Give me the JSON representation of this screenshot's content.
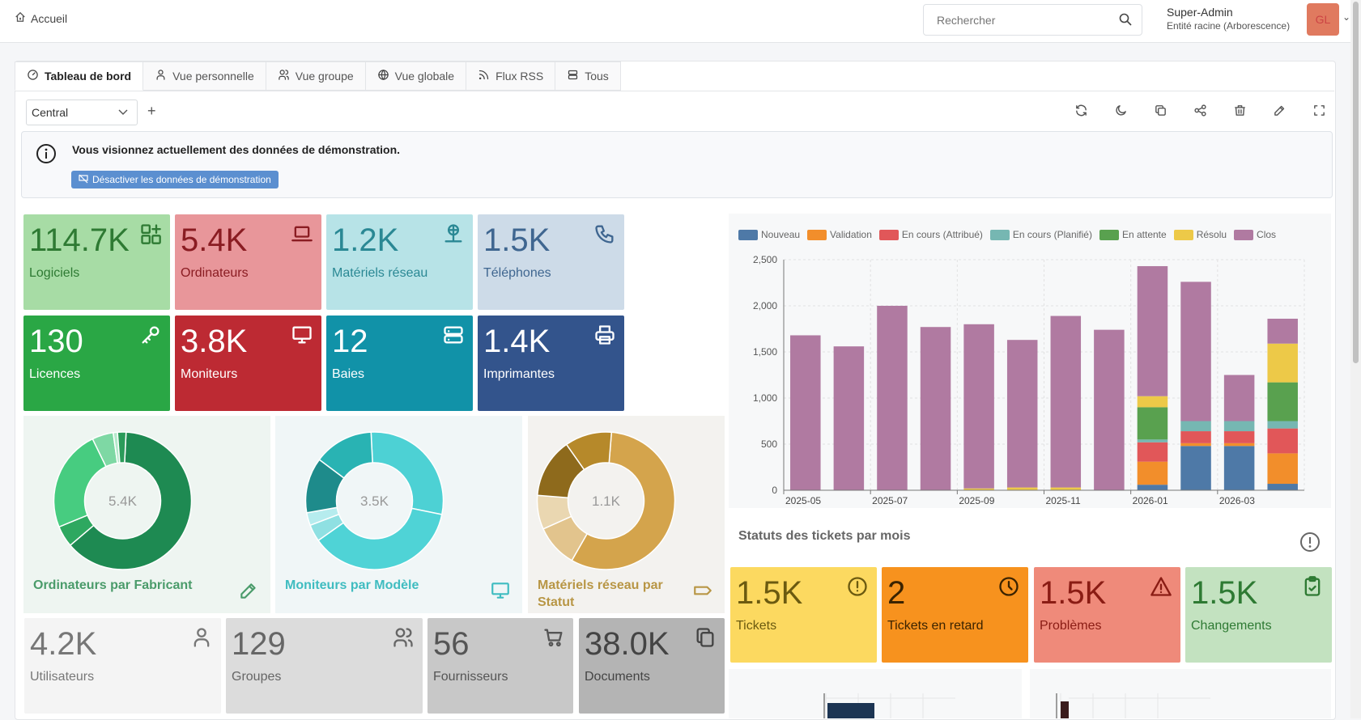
{
  "header": {
    "home_label": "Accueil",
    "search_placeholder": "Rechercher",
    "user_name": "Super-Admin",
    "user_entity": "Entité racine (Arborescence)",
    "avatar_initials": "GL"
  },
  "tabs": [
    {
      "label": "Tableau de bord",
      "icon": "gauge-icon"
    },
    {
      "label": "Vue personnelle",
      "icon": "user-icon"
    },
    {
      "label": "Vue groupe",
      "icon": "users-icon"
    },
    {
      "label": "Vue globale",
      "icon": "globe-icon"
    },
    {
      "label": "Flux RSS",
      "icon": "rss-icon"
    },
    {
      "label": "Tous",
      "icon": "stack-icon"
    }
  ],
  "dashboard_select": {
    "value": "Central"
  },
  "toolbar": [
    "refresh-icon",
    "moon-icon",
    "copy-icon",
    "share-icon",
    "trash-icon",
    "edit-icon",
    "fullscreen-icon"
  ],
  "alert": {
    "message": "Vous visionnez actuellement des données de démonstration.",
    "button": "Désactiver les données de démonstration"
  },
  "cards_top": [
    {
      "value": "114.7K",
      "label": "Logiciels",
      "icon": "apps-icon",
      "bg": "#a7dca5",
      "fg": "#2e7a33"
    },
    {
      "value": "5.4K",
      "label": "Ordinateurs",
      "icon": "laptop-icon",
      "bg": "#e8969a",
      "fg": "#8a1c22"
    },
    {
      "value": "1.2K",
      "label": "Matériels réseau",
      "icon": "network-icon",
      "bg": "#b7e3e7",
      "fg": "#2a8894"
    },
    {
      "value": "1.5K",
      "label": "Téléphones",
      "icon": "phone-icon",
      "bg": "#cddbe8",
      "fg": "#3f6690"
    },
    {
      "value": "130",
      "label": "Licences",
      "icon": "key-icon",
      "bg": "#2aa745",
      "fg": "#ffffff"
    },
    {
      "value": "3.8K",
      "label": "Moniteurs",
      "icon": "monitor-icon",
      "bg": "#bd2a33",
      "fg": "#ffffff"
    },
    {
      "value": "12",
      "label": "Baies",
      "icon": "server-icon",
      "bg": "#1192a8",
      "fg": "#ffffff"
    },
    {
      "value": "1.4K",
      "label": "Imprimantes",
      "icon": "printer-icon",
      "bg": "#33548c",
      "fg": "#ffffff"
    }
  ],
  "donuts": [
    {
      "title": "Ordinateurs par Fabricant",
      "center": "5.4K",
      "icon": "edit-icon",
      "bg": "#eef5f1",
      "title_color": "#4a9b6a",
      "slices": [
        {
          "value": 63,
          "color": "#1e8a52"
        },
        {
          "value": 5,
          "color": "#2ea860"
        },
        {
          "value": 24,
          "color": "#47cc80"
        },
        {
          "value": 5,
          "color": "#7ed8a4"
        },
        {
          "value": 1,
          "color": "#b4e9cb"
        },
        {
          "value": 2,
          "color": "#2b9b5a"
        }
      ]
    },
    {
      "title": "Moniteurs par Modèle",
      "center": "3.5K",
      "icon": "monitor-icon",
      "bg": "#f0f6f7",
      "title_color": "#3fbcc0",
      "slices": [
        {
          "value": 29,
          "color": "#4dd1d4"
        },
        {
          "value": 37,
          "color": "#4fd3d6"
        },
        {
          "value": 4,
          "color": "#8fe0e2"
        },
        {
          "value": 3,
          "color": "#b6ecee"
        },
        {
          "value": 13,
          "color": "#1e8b8b"
        },
        {
          "value": 14,
          "color": "#29b3b3"
        }
      ]
    },
    {
      "title": "Matériels réseau par Statut",
      "center": "1.1K",
      "icon": "tag-icon",
      "bg": "#f3f2ef",
      "title_color": "#b89645",
      "slices": [
        {
          "value": 57,
          "color": "#d4a44c"
        },
        {
          "value": 10,
          "color": "#e2c48d"
        },
        {
          "value": 8,
          "color": "#ead7b1"
        },
        {
          "value": 14,
          "color": "#8e6a1c"
        },
        {
          "value": 11,
          "color": "#b6892a"
        }
      ]
    }
  ],
  "cards_bottom": [
    {
      "value": "4.2K",
      "label": "Utilisateurs",
      "icon": "user-icon",
      "bg": "#f4f4f4",
      "fg": "#777777"
    },
    {
      "value": "129",
      "label": "Groupes",
      "icon": "users-icon",
      "bg": "#dcdcdc",
      "fg": "#666666"
    },
    {
      "value": "56",
      "label": "Fournisseurs",
      "icon": "cart-icon",
      "bg": "#c8c8c8",
      "fg": "#555555"
    },
    {
      "value": "38.0K",
      "label": "Documents",
      "icon": "files-icon",
      "bg": "#b4b4b4",
      "fg": "#444444"
    }
  ],
  "ticket_cards": [
    {
      "value": "1.5K",
      "label": "Tickets",
      "icon": "alert-circle-icon",
      "bg": "#fcd960",
      "fg": "#6b5a10"
    },
    {
      "value": "2",
      "label": "Tickets en retard",
      "icon": "clock-icon",
      "bg": "#f7921e",
      "fg": "#3b2300"
    },
    {
      "value": "1.5K",
      "label": "Problèmes",
      "icon": "warning-icon",
      "bg": "#ef8a7a",
      "fg": "#8a1c14"
    },
    {
      "value": "1.5K",
      "label": "Changements",
      "icon": "clipboard-check-icon",
      "bg": "#c3e2c0",
      "fg": "#2e7a33"
    }
  ],
  "chart_title": "Statuts des tickets par mois",
  "chart_data": {
    "type": "bar",
    "stacked": true,
    "categories": [
      "2025-05",
      "2025-06",
      "2025-07",
      "2025-08",
      "2025-09",
      "2025-10",
      "2025-11",
      "2025-12",
      "2026-01",
      "2026-02",
      "2026-03",
      "2026-04"
    ],
    "x_tick_labels": [
      "2025-05",
      "2025-07",
      "2025-09",
      "2025-11",
      "2026-01",
      "2026-03"
    ],
    "ylim": [
      0,
      2500
    ],
    "y_ticks": [
      "0",
      "500",
      "1,000",
      "1,500",
      "2,000",
      "2,500"
    ],
    "legend_position": "top",
    "grid": true,
    "series": [
      {
        "name": "Nouveau",
        "color": "#4e79a7",
        "values": [
          0,
          0,
          0,
          0,
          0,
          0,
          0,
          0,
          60,
          480,
          480,
          70
        ]
      },
      {
        "name": "Validation",
        "color": "#f28e2b",
        "values": [
          0,
          0,
          0,
          0,
          0,
          0,
          0,
          0,
          250,
          30,
          30,
          330
        ]
      },
      {
        "name": "En cours (Attribué)",
        "color": "#e15759",
        "values": [
          0,
          0,
          0,
          0,
          0,
          0,
          0,
          0,
          210,
          130,
          130,
          270
        ]
      },
      {
        "name": "En cours (Planifié)",
        "color": "#76b7b2",
        "values": [
          0,
          0,
          0,
          0,
          0,
          0,
          0,
          0,
          30,
          110,
          110,
          80
        ]
      },
      {
        "name": "En attente",
        "color": "#59a14f",
        "values": [
          0,
          0,
          0,
          0,
          0,
          0,
          0,
          0,
          350,
          0,
          0,
          420
        ]
      },
      {
        "name": "Résolu",
        "color": "#edc948",
        "values": [
          0,
          0,
          0,
          0,
          20,
          30,
          30,
          0,
          120,
          0,
          0,
          420
        ]
      },
      {
        "name": "Clos",
        "color": "#b07aa1",
        "values": [
          1680,
          1560,
          2000,
          1770,
          1780,
          1600,
          1860,
          1740,
          1410,
          1510,
          500,
          270
        ]
      }
    ]
  }
}
